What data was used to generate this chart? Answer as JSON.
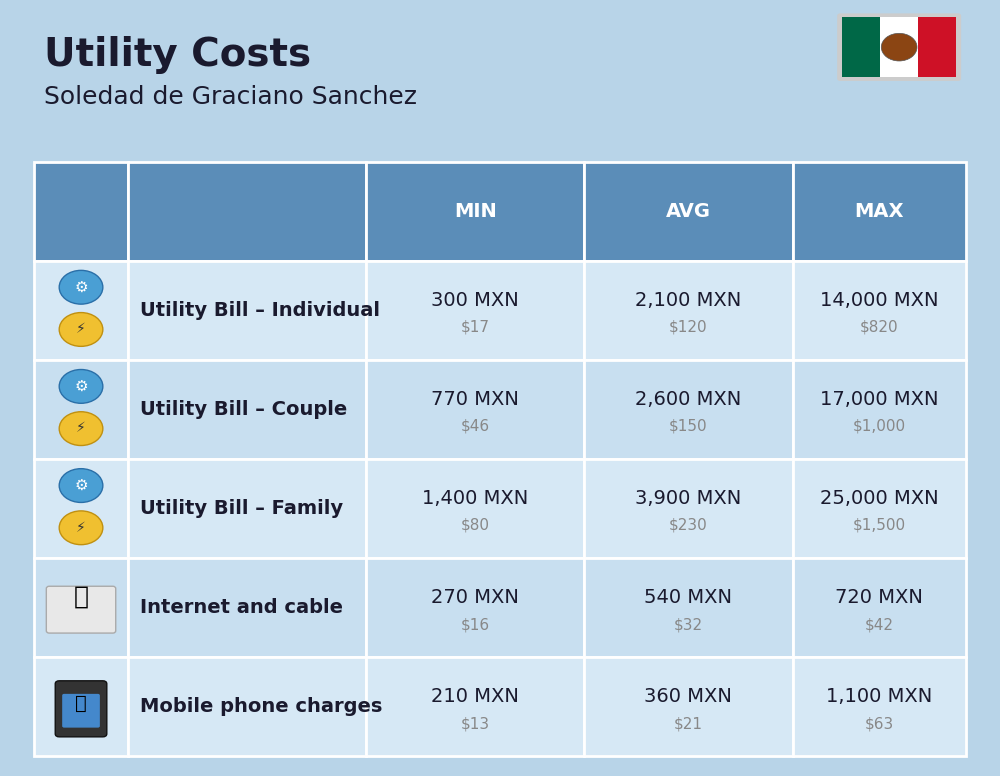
{
  "title": "Utility Costs",
  "subtitle": "Soledad de Graciano Sanchez",
  "background_color": "#b8d4e8",
  "header_color": "#5b8db8",
  "header_text_color": "#ffffff",
  "row_colors": [
    "#d6e8f5",
    "#c8dff0"
  ],
  "col_headers": [
    "MIN",
    "AVG",
    "MAX"
  ],
  "rows": [
    {
      "label": "Utility Bill - Individual",
      "min_mxn": "300 MXN",
      "min_usd": "$17",
      "avg_mxn": "2,100 MXN",
      "avg_usd": "$120",
      "max_mxn": "14,000 MXN",
      "max_usd": "$820"
    },
    {
      "label": "Utility Bill - Couple",
      "min_mxn": "770 MXN",
      "min_usd": "$46",
      "avg_mxn": "2,600 MXN",
      "avg_usd": "$150",
      "max_mxn": "17,000 MXN",
      "max_usd": "$1,000"
    },
    {
      "label": "Utility Bill - Family",
      "min_mxn": "1,400 MXN",
      "min_usd": "$80",
      "avg_mxn": "3,900 MXN",
      "avg_usd": "$230",
      "max_mxn": "25,000 MXN",
      "max_usd": "$1,500"
    },
    {
      "label": "Internet and cable",
      "min_mxn": "270 MXN",
      "min_usd": "$16",
      "avg_mxn": "540 MXN",
      "avg_usd": "$32",
      "max_mxn": "720 MXN",
      "max_usd": "$42"
    },
    {
      "label": "Mobile phone charges",
      "min_mxn": "210 MXN",
      "min_usd": "$13",
      "avg_mxn": "360 MXN",
      "avg_usd": "$21",
      "max_mxn": "1,100 MXN",
      "max_usd": "$63"
    }
  ],
  "title_fontsize": 28,
  "subtitle_fontsize": 18,
  "header_fontsize": 14,
  "label_fontsize": 14,
  "value_fontsize": 14,
  "usd_fontsize": 11,
  "usd_color": "#888888",
  "label_color": "#1a1a2e",
  "value_color": "#1a1a2e",
  "flag_green": "#006847",
  "flag_white": "#FFFFFF",
  "flag_red": "#CE1126",
  "em_dash": " – "
}
